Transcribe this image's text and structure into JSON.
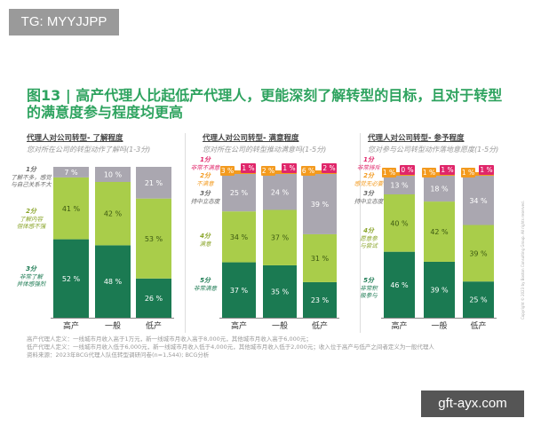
{
  "tag": "TG: MYYJJPP",
  "watermark": "gft-ayx.com",
  "title": "图13 | 高产代理人比起低产代理人，更能深刻了解转型的目标，且对于转型的满意度参与程度均更高",
  "footer": [
    "高产代理人定义：一线城市月收入高于1万元，新一线城市月收入高于8,000元，其他城市月收入高于6,000元；",
    "低产代理人定义：一线城市月收入低于6,000元，新一线城市月收入低于4,000元，其他城市月收入低于2,000元；收入位于高产与低产之间者定义为一般代理人",
    "资料来源：2023年BCG代理人队伍转型调研问卷(n=1,544); BCG分析"
  ],
  "copyright": "Copyright © 2023 by Boston Consulting Group. All rights reserved.",
  "colors": {
    "score5": "#1b7a52",
    "score4": "#a9cd4a",
    "score3": "#aaa7b0",
    "score2": "#f39a1e",
    "score1": "#e0266a",
    "title": "#2ea35f"
  },
  "chart_data": [
    {
      "type": "bar",
      "stacked": true,
      "title": "代理人对公司转型- 了解程度",
      "subtitle": "您对所在公司的转型动作了解吗(1-3分)",
      "categories": [
        "高产",
        "一般",
        "低产"
      ],
      "series": [
        {
          "name": "3分",
          "desc": "非常了解 并体感强烈",
          "key": "score5",
          "values": [
            52,
            48,
            26
          ]
        },
        {
          "name": "2分",
          "desc": "了解内容 但体感不强",
          "key": "score4",
          "values": [
            41,
            42,
            53
          ]
        },
        {
          "name": "1分",
          "desc": "了解不多，感觉与自己关系不大",
          "key": "score3",
          "values": [
            7,
            10,
            21
          ]
        }
      ],
      "unit": "%"
    },
    {
      "type": "bar",
      "stacked": true,
      "title": "代理人对公司转型- 满意程度",
      "subtitle": "您对所在公司的转型推动满意吗(1-5分)",
      "categories": [
        "高产",
        "一般",
        "低产"
      ],
      "series": [
        {
          "name": "5分",
          "desc": "非常满意",
          "key": "score5",
          "values": [
            37,
            35,
            23
          ]
        },
        {
          "name": "4分",
          "desc": "满意",
          "key": "score4",
          "values": [
            34,
            37,
            31
          ]
        },
        {
          "name": "3分",
          "desc": "持中立态度",
          "key": "score3",
          "values": [
            25,
            24,
            39
          ]
        },
        {
          "name": "2分",
          "desc": "不满意",
          "key": "score2",
          "values": [
            3,
            2,
            6
          ]
        },
        {
          "name": "1分",
          "desc": "非常不满意",
          "key": "score1",
          "values": [
            1,
            1,
            2
          ]
        }
      ],
      "unit": "%"
    },
    {
      "type": "bar",
      "stacked": true,
      "title": "代理人对公司转型- 参予程度",
      "subtitle": "您对参与公司转型动作落地意愿度(1-5分)",
      "categories": [
        "高产",
        "一般",
        "低产"
      ],
      "series": [
        {
          "name": "5分",
          "desc": "非常积极参与",
          "key": "score5",
          "values": [
            46,
            39,
            25
          ]
        },
        {
          "name": "4分",
          "desc": "愿意参与尝试",
          "key": "score4",
          "values": [
            40,
            42,
            39
          ]
        },
        {
          "name": "3分",
          "desc": "持中立态度",
          "key": "score3",
          "values": [
            13,
            18,
            34
          ]
        },
        {
          "name": "2分",
          "desc": "感觉无必要",
          "key": "score2",
          "values": [
            1,
            1,
            1
          ]
        },
        {
          "name": "1分",
          "desc": "非常排斥",
          "key": "score1",
          "values": [
            0,
            1,
            1
          ]
        }
      ],
      "unit": "%"
    }
  ]
}
